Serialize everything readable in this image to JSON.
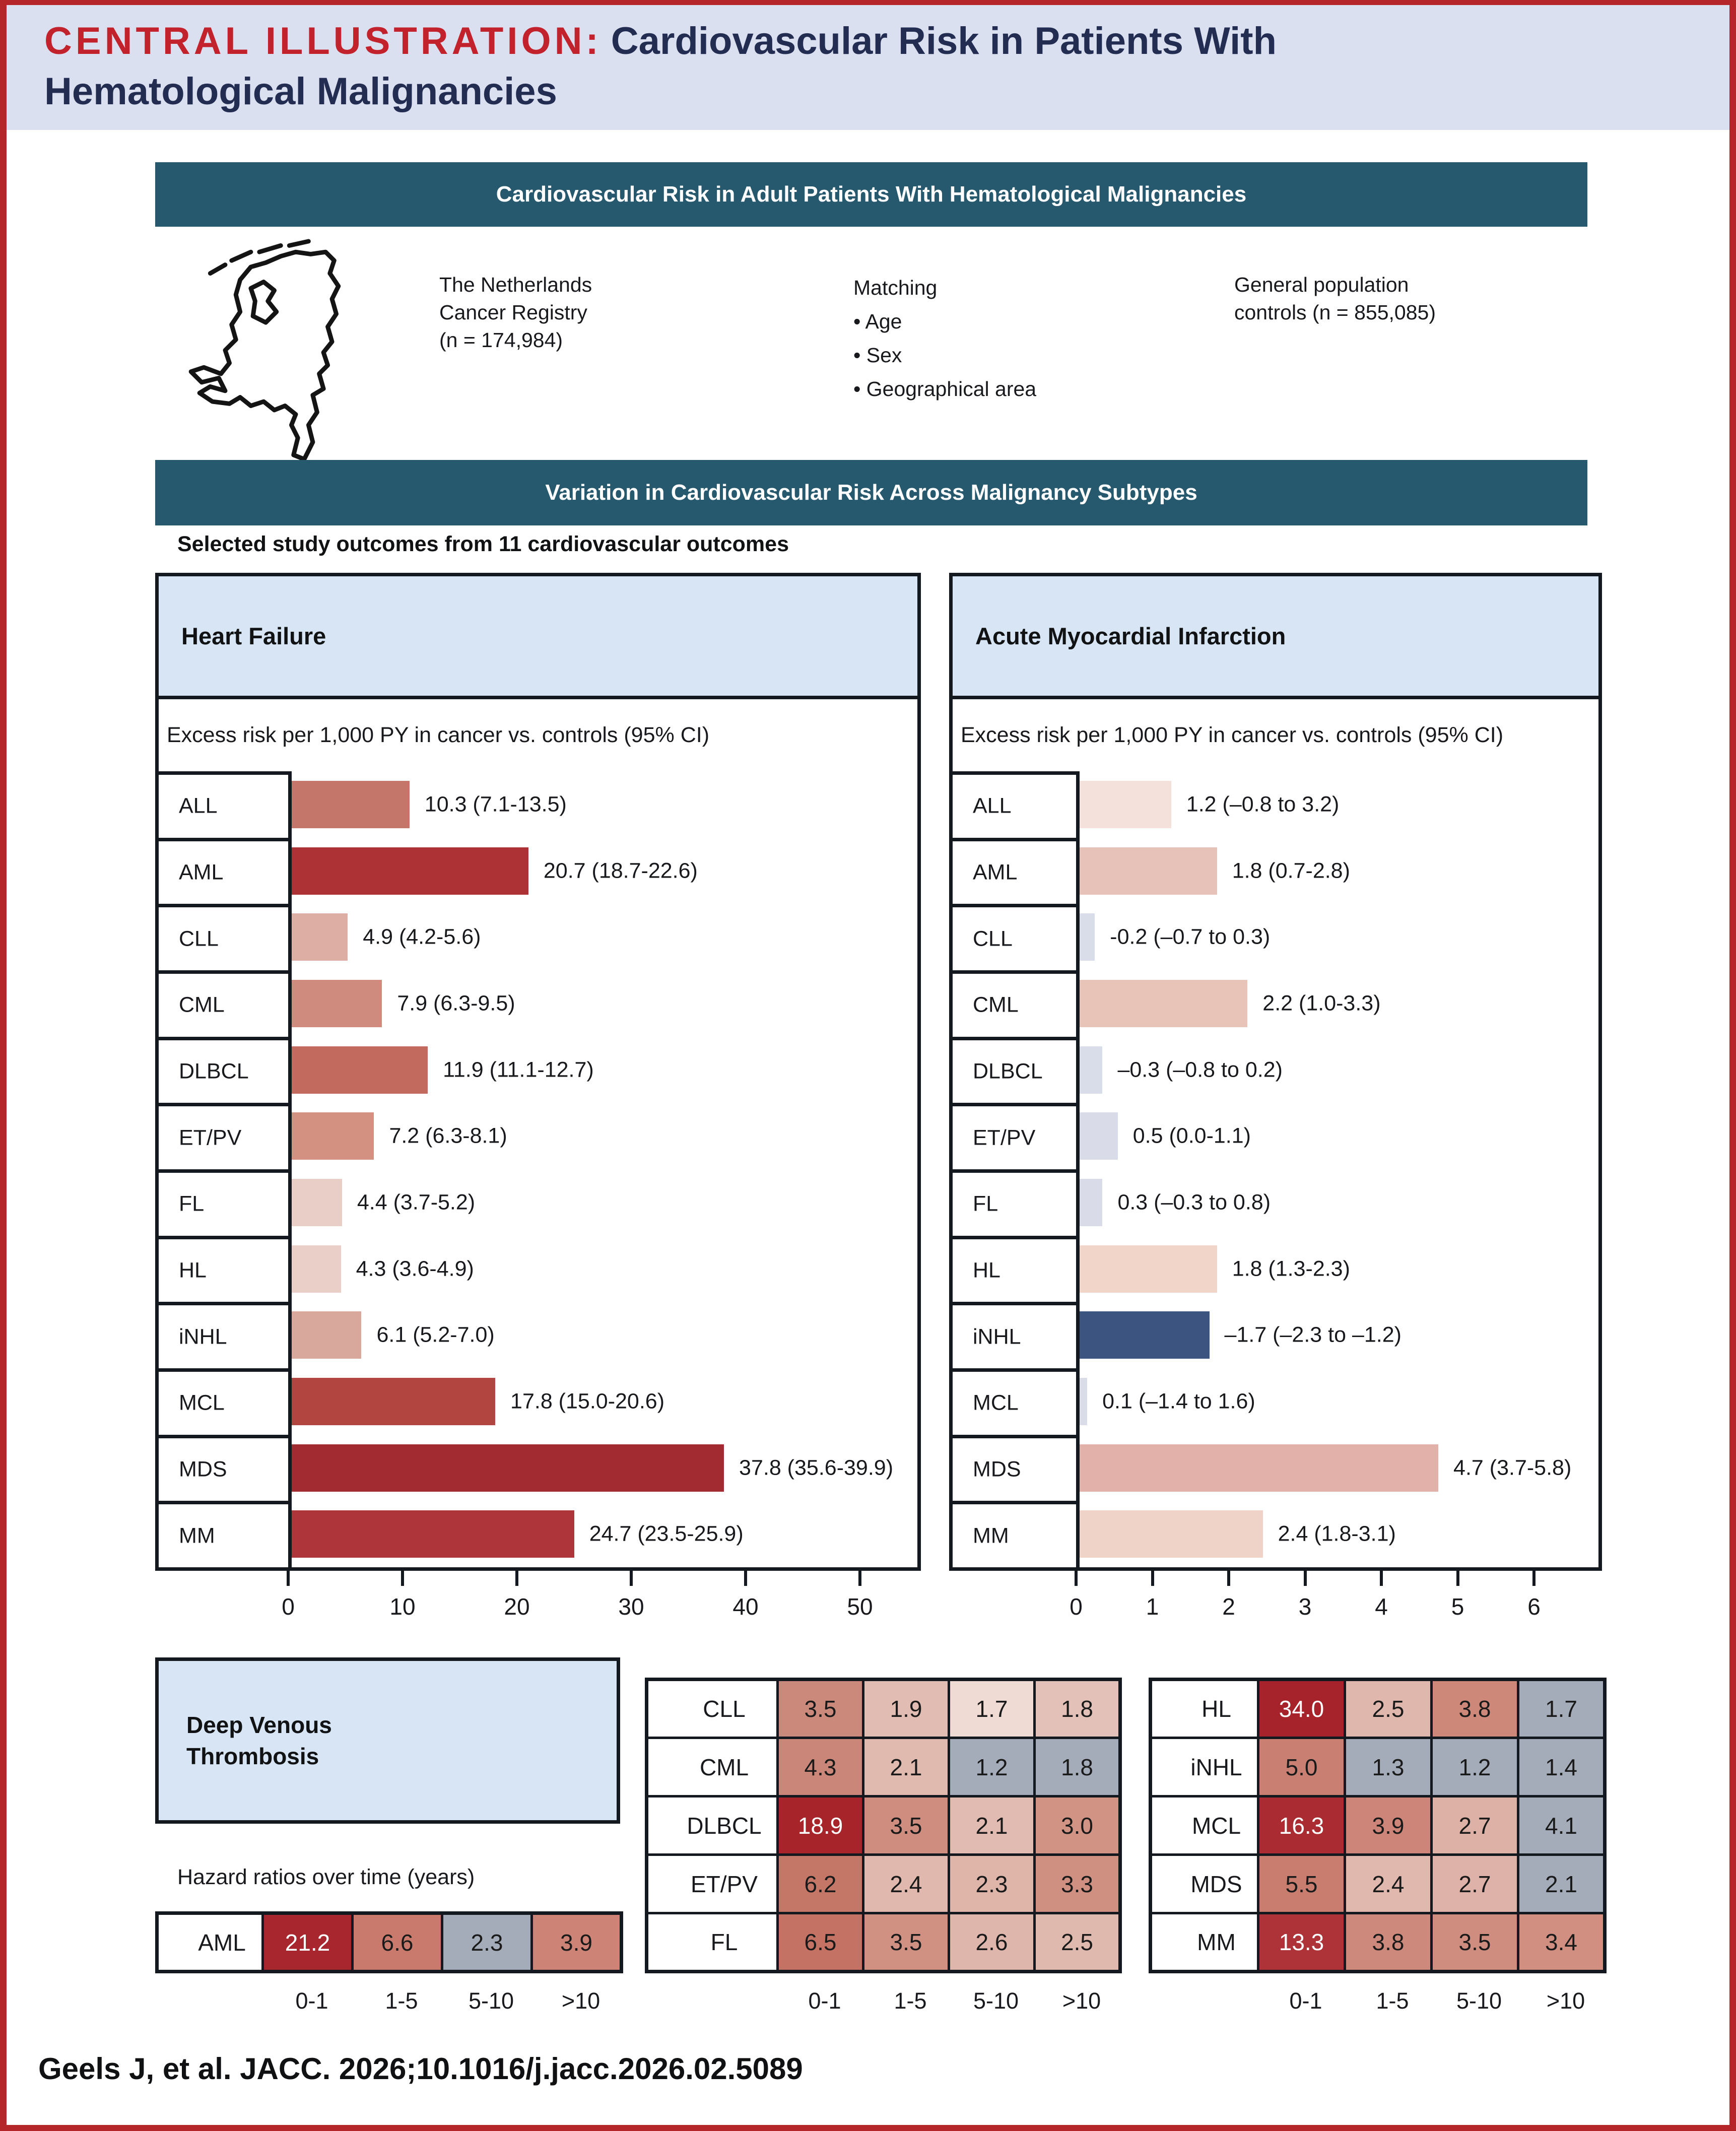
{
  "header": {
    "eyebrow": "CENTRAL ILLUSTRATION:",
    "title_line1": "Cardiovascular Risk in Patients With",
    "title_line2": "Hematological Malignancies"
  },
  "banner1": "Cardiovascular Risk in Adult Patients With Hematological Malignancies",
  "study": {
    "registry_lines": [
      "The Netherlands",
      "Cancer Registry",
      "(n = 174,984)"
    ],
    "matching_lines": [
      "Matching",
      "• Age",
      "• Sex",
      "• Geographical area"
    ],
    "controls_lines": [
      "General population",
      "controls (n = 855,085)"
    ]
  },
  "banner2": "Variation in Cardiovascular Risk Across Malignancy Subtypes",
  "outcomes_note": "Selected study outcomes from 11 cardiovascular outcomes",
  "colors": {
    "frame_red": "#b5262b",
    "eyebrow_red": "#c2222b",
    "title_navy": "#232d52",
    "banner_teal": "#27596e",
    "panel_header_blue": "#d7e5f4",
    "negative_bar_navy": "#3b5480",
    "nonsignificant_gray": "#a3acb8"
  },
  "chart_data": [
    {
      "type": "bar",
      "title": "Heart Failure",
      "subtitle": "Excess risk per 1,000 PY in cancer vs. controls (95% CI)",
      "xlabel": "",
      "ylabel": "",
      "xlim": [
        0,
        50
      ],
      "ticks": [
        "0",
        "10",
        "20",
        "30",
        "40",
        "50"
      ],
      "categories": [
        "ALL",
        "AML",
        "CLL",
        "CML",
        "DLBCL",
        "ET/PV",
        "FL",
        "HL",
        "iNHL",
        "MCL",
        "MDS",
        "MM"
      ],
      "values": [
        10.3,
        20.7,
        4.9,
        7.9,
        11.9,
        7.2,
        4.4,
        4.3,
        6.1,
        17.8,
        37.8,
        24.7
      ],
      "labels": [
        "10.3 (7.1-13.5)",
        "20.7 (18.7-22.6)",
        "4.9 (4.2-5.6)",
        "7.9 (6.3-9.5)",
        "11.9 (11.1-12.7)",
        "7.2 (6.3-8.1)",
        "4.4 (3.7-5.2)",
        "4.3 (3.6-4.9)",
        "6.1 (5.2-7.0)",
        "17.8 (15.0-20.6)",
        "37.8 (35.6-39.9)",
        "24.7 (23.5-25.9)"
      ],
      "bar_colors": [
        "#c4766b",
        "#ac3236",
        "#dcaea4",
        "#cf8b7d",
        "#c26a5d",
        "#d29181",
        "#e9cec7",
        "#eacfc8",
        "#d8a89d",
        "#b34540",
        "#a12b31",
        "#ae363a"
      ]
    },
    {
      "type": "bar",
      "title": "Acute Myocardial Infarction",
      "subtitle": "Excess risk per 1,000 PY in cancer vs. controls (95% CI)",
      "xlabel": "",
      "ylabel": "",
      "xlim": [
        0,
        6
      ],
      "ticks": [
        "0",
        "1",
        "2",
        "3",
        "4",
        "5",
        "6"
      ],
      "categories": [
        "ALL",
        "AML",
        "CLL",
        "CML",
        "DLBCL",
        "ET/PV",
        "FL",
        "HL",
        "iNHL",
        "MCL",
        "MDS",
        "MM"
      ],
      "values": [
        1.2,
        1.8,
        -0.2,
        2.2,
        -0.3,
        0.5,
        0.3,
        1.8,
        -1.7,
        0.1,
        4.7,
        2.4
      ],
      "labels": [
        "1.2 (–0.8 to 3.2)",
        "1.8 (0.7-2.8)",
        "-0.2 (–0.7 to 0.3)",
        "2.2 (1.0-3.3)",
        "–0.3 (–0.8 to 0.2)",
        "0.5 (0.0-1.1)",
        "0.3 (–0.3 to 0.8)",
        "1.8 (1.3-2.3)",
        "–1.7 (–2.3 to –1.2)",
        "0.1 (–1.4 to 1.6)",
        "4.7 (3.7-5.8)",
        "2.4 (1.8-3.1)"
      ],
      "bar_colors": [
        "#f4e1dc",
        "#e6c2b8",
        "#d9dce9",
        "#e8c3b7",
        "#d9dce9",
        "#d9dbe8",
        "#d9dbe8",
        "#f0d5c8",
        "#3b5480",
        "#dadce8",
        "#e2b2aa",
        "#efd2c8"
      ]
    },
    {
      "type": "heatmap",
      "title": "Deep Venous Thrombosis",
      "title_lines": [
        "Deep Venous",
        "Thrombosis"
      ],
      "note": "Hazard ratios over time (years)",
      "columns": [
        "0-1",
        "1-5",
        "5-10",
        ">10"
      ],
      "groups": [
        {
          "rows": [
            {
              "label": "AML",
              "values": [
                "21.2",
                "6.6",
                "2.3",
                "3.9"
              ],
              "colors": [
                "#a8262d",
                "#c97a6c",
                "#a3acb8",
                "#cd8376"
              ],
              "text_colors": [
                "#ffffff",
                "#1a1a1a",
                "#1a1a1a",
                "#1a1a1a"
              ]
            }
          ]
        },
        {
          "rows": [
            {
              "label": "CLL",
              "values": [
                "3.5",
                "1.9",
                "1.7",
                "1.8"
              ],
              "colors": [
                "#cb897b",
                "#e1bcb2",
                "#efdad4",
                "#e3c1b8"
              ],
              "text_colors": [
                "#1a1a1a",
                "#1a1a1a",
                "#1a1a1a",
                "#1a1a1a"
              ]
            },
            {
              "label": "CML",
              "values": [
                "4.3",
                "2.1",
                "1.2",
                "1.8"
              ],
              "colors": [
                "#ca8678",
                "#e0b9af",
                "#a3acb8",
                "#a3acb8"
              ],
              "text_colors": [
                "#1a1a1a",
                "#1a1a1a",
                "#1a1a1a",
                "#1a1a1a"
              ]
            },
            {
              "label": "DLBCL",
              "values": [
                "18.9",
                "3.5",
                "2.1",
                "3.0"
              ],
              "colors": [
                "#a8242b",
                "#ce8d7f",
                "#e1bbb1",
                "#d19384"
              ],
              "text_colors": [
                "#ffffff",
                "#1a1a1a",
                "#1a1a1a",
                "#1a1a1a"
              ]
            },
            {
              "label": "ET/PV",
              "values": [
                "6.2",
                "2.4",
                "2.3",
                "3.3"
              ],
              "colors": [
                "#c57767",
                "#e0b8ad",
                "#dfb5aa",
                "#cf9082"
              ],
              "text_colors": [
                "#1a1a1a",
                "#1a1a1a",
                "#1a1a1a",
                "#1a1a1a"
              ]
            },
            {
              "label": "FL",
              "values": [
                "6.5",
                "3.5",
                "2.6",
                "2.5"
              ],
              "colors": [
                "#c37263",
                "#d09182",
                "#dfb6ab",
                "#e0b9ae"
              ],
              "text_colors": [
                "#1a1a1a",
                "#1a1a1a",
                "#1a1a1a",
                "#1a1a1a"
              ]
            }
          ]
        },
        {
          "rows": [
            {
              "label": "HL",
              "values": [
                "34.0",
                "2.5",
                "3.8",
                "1.7"
              ],
              "colors": [
                "#a7232b",
                "#e0b7ad",
                "#cd887a",
                "#a3acb8"
              ],
              "text_colors": [
                "#ffffff",
                "#1a1a1a",
                "#1a1a1a",
                "#1a1a1a"
              ]
            },
            {
              "label": "iNHL",
              "values": [
                "5.0",
                "1.3",
                "1.2",
                "1.4"
              ],
              "colors": [
                "#c98073",
                "#a3acb8",
                "#a3acb8",
                "#a3acb8"
              ],
              "text_colors": [
                "#1a1a1a",
                "#1a1a1a",
                "#1a1a1a",
                "#1a1a1a"
              ]
            },
            {
              "label": "MCL",
              "values": [
                "16.3",
                "3.9",
                "2.7",
                "4.1"
              ],
              "colors": [
                "#aa2b31",
                "#cc8578",
                "#deb1a6",
                "#a3acb8"
              ],
              "text_colors": [
                "#ffffff",
                "#1a1a1a",
                "#1a1a1a",
                "#1a1a1a"
              ]
            },
            {
              "label": "MDS",
              "values": [
                "5.5",
                "2.4",
                "2.7",
                "2.1"
              ],
              "colors": [
                "#c87d6f",
                "#e0b8ae",
                "#deb2a8",
                "#a3acb8"
              ],
              "text_colors": [
                "#1a1a1a",
                "#1a1a1a",
                "#1a1a1a",
                "#1a1a1a"
              ]
            },
            {
              "label": "MM",
              "values": [
                "13.3",
                "3.8",
                "3.5",
                "3.4"
              ],
              "colors": [
                "#ae3338",
                "#cd897b",
                "#cf8d7f",
                "#d08f81"
              ],
              "text_colors": [
                "#ffffff",
                "#1a1a1a",
                "#1a1a1a",
                "#1a1a1a"
              ]
            }
          ]
        }
      ]
    }
  ],
  "footer": "Geels J, et al. JACC. 2026;10.1016/j.jacc.2026.02.5089"
}
